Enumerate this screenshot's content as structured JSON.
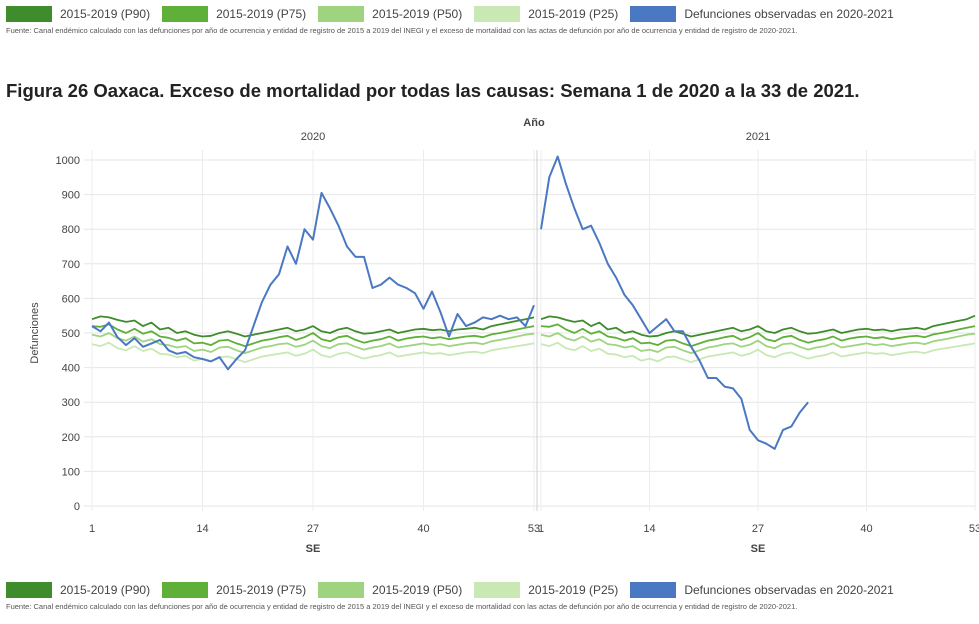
{
  "legend": [
    {
      "label": "2015-2019 (P90)",
      "color": "#3e8c2b"
    },
    {
      "label": "2015-2019 (P75)",
      "color": "#5fb039"
    },
    {
      "label": "2015-2019 (P50)",
      "color": "#9ed47f"
    },
    {
      "label": "2015-2019 (P25)",
      "color": "#c9e8b4"
    },
    {
      "label": "Defunciones observadas en 2020-2021",
      "color": "#4a78c2"
    }
  ],
  "source": "Fuente: Canal endémico calculado con las defunciones por año de ocurrencia y entidad de registro de 2015 a 2019 del INEGI y el exceso de mortalidad con las actas de defunción por año de ocurrencia y entidad de registro de 2020-2021.",
  "title": "Figura 26 Oaxaca. Exceso de mortalidad por todas las causas: Semana 1 de 2020 a la 33 de 2021.",
  "chart_data": {
    "type": "line",
    "title": "Año",
    "ylabel": "Defunciones",
    "xlabel": "SE",
    "ylim": [
      0,
      1000
    ],
    "yticks": [
      0,
      100,
      200,
      300,
      400,
      500,
      600,
      700,
      800,
      900,
      1000
    ],
    "grid": true,
    "panels": [
      {
        "label": "2020",
        "x_ticks": [
          1,
          14,
          27,
          40,
          53
        ],
        "x_range": [
          1,
          53
        ]
      },
      {
        "label": "2021",
        "x_ticks": [
          1,
          14,
          27,
          40,
          53
        ],
        "x_range": [
          1,
          53
        ]
      }
    ],
    "series": [
      {
        "name": "2015-2019 (P90)",
        "color": "#3e8c2b",
        "panel_2020": [
          540,
          548,
          545,
          538,
          532,
          536,
          520,
          530,
          510,
          515,
          500,
          505,
          495,
          490,
          492,
          500,
          505,
          498,
          490,
          495,
          500,
          505,
          510,
          515,
          505,
          510,
          520,
          505,
          500,
          510,
          515,
          505,
          498,
          500,
          505,
          510,
          500,
          505,
          510,
          512,
          508,
          510,
          505,
          510,
          512,
          515,
          510,
          520,
          525,
          530,
          535,
          540,
          545
        ],
        "panel_2021": [
          540,
          548,
          545,
          538,
          532,
          536,
          520,
          530,
          510,
          515,
          500,
          505,
          495,
          490,
          492,
          500,
          505,
          498,
          490,
          495,
          500,
          505,
          510,
          515,
          505,
          510,
          520,
          505,
          500,
          510,
          515,
          505,
          498,
          500,
          505,
          510,
          500,
          505,
          510,
          512,
          508,
          510,
          505,
          510,
          512,
          515,
          510,
          520,
          525,
          530,
          535,
          540,
          550
        ]
      },
      {
        "name": "2015-2019 (P75)",
        "color": "#5fb039",
        "panel_2020": [
          520,
          518,
          525,
          510,
          500,
          512,
          498,
          505,
          490,
          486,
          478,
          485,
          470,
          472,
          465,
          478,
          480,
          470,
          462,
          470,
          478,
          482,
          488,
          492,
          480,
          488,
          500,
          482,
          476,
          488,
          492,
          480,
          472,
          478,
          482,
          490,
          478,
          484,
          488,
          490,
          485,
          488,
          482,
          486,
          490,
          492,
          488,
          496,
          500,
          505,
          510,
          515,
          520
        ],
        "panel_2021": [
          520,
          518,
          525,
          510,
          500,
          512,
          498,
          505,
          490,
          486,
          478,
          485,
          470,
          472,
          465,
          478,
          480,
          470,
          462,
          470,
          478,
          482,
          488,
          492,
          480,
          488,
          500,
          482,
          476,
          488,
          492,
          480,
          472,
          478,
          482,
          490,
          478,
          484,
          488,
          490,
          485,
          488,
          482,
          486,
          490,
          492,
          488,
          496,
          500,
          505,
          510,
          515,
          520
        ]
      },
      {
        "name": "2015-2019 (P50)",
        "color": "#9ed47f",
        "panel_2020": [
          495,
          490,
          500,
          485,
          478,
          490,
          475,
          482,
          468,
          465,
          458,
          462,
          448,
          452,
          445,
          458,
          460,
          450,
          442,
          450,
          458,
          462,
          468,
          470,
          460,
          466,
          478,
          462,
          456,
          468,
          470,
          460,
          452,
          458,
          462,
          470,
          458,
          462,
          466,
          470,
          465,
          468,
          462,
          466,
          470,
          472,
          468,
          476,
          480,
          485,
          490,
          495,
          498
        ],
        "panel_2021": [
          495,
          490,
          500,
          485,
          478,
          490,
          475,
          482,
          468,
          465,
          458,
          462,
          448,
          452,
          445,
          458,
          460,
          450,
          442,
          450,
          458,
          462,
          468,
          470,
          460,
          466,
          478,
          462,
          456,
          468,
          470,
          460,
          452,
          458,
          462,
          470,
          458,
          462,
          466,
          470,
          465,
          468,
          462,
          466,
          470,
          472,
          468,
          476,
          480,
          485,
          490,
          495,
          498
        ]
      },
      {
        "name": "2015-2019 (P25)",
        "color": "#c9e8b4",
        "panel_2020": [
          468,
          462,
          472,
          456,
          450,
          462,
          448,
          455,
          440,
          438,
          430,
          434,
          420,
          426,
          418,
          430,
          432,
          424,
          416,
          424,
          432,
          436,
          440,
          444,
          434,
          440,
          452,
          436,
          430,
          440,
          444,
          434,
          426,
          432,
          436,
          444,
          432,
          436,
          440,
          444,
          440,
          442,
          436,
          440,
          444,
          446,
          442,
          450,
          454,
          458,
          462,
          466,
          470
        ],
        "panel_2021": [
          468,
          462,
          472,
          456,
          450,
          462,
          448,
          455,
          440,
          438,
          430,
          434,
          420,
          426,
          418,
          430,
          432,
          424,
          416,
          424,
          432,
          436,
          440,
          444,
          434,
          440,
          452,
          436,
          430,
          440,
          444,
          434,
          426,
          432,
          436,
          444,
          432,
          436,
          440,
          444,
          440,
          442,
          436,
          440,
          444,
          446,
          442,
          450,
          454,
          458,
          462,
          466,
          470
        ]
      },
      {
        "name": "Defunciones observadas en 2020-2021",
        "color": "#4a78c2",
        "panel_2020": [
          520,
          505,
          530,
          488,
          465,
          485,
          460,
          470,
          480,
          450,
          440,
          445,
          430,
          425,
          418,
          430,
          395,
          425,
          450,
          520,
          590,
          640,
          670,
          750,
          700,
          800,
          770,
          905,
          860,
          810,
          750,
          720,
          720,
          630,
          640,
          660,
          640,
          630,
          615,
          570,
          620,
          560,
          490,
          555,
          520,
          530,
          545,
          540,
          550,
          540,
          545,
          520,
          580
        ],
        "panel_2021": [
          800,
          950,
          1010,
          930,
          860,
          800,
          810,
          760,
          700,
          660,
          610,
          580,
          540,
          500,
          520,
          540,
          505,
          505,
          460,
          420,
          370,
          370,
          345,
          340,
          310,
          220,
          190,
          180,
          165,
          220,
          230,
          270,
          300
        ]
      }
    ]
  }
}
